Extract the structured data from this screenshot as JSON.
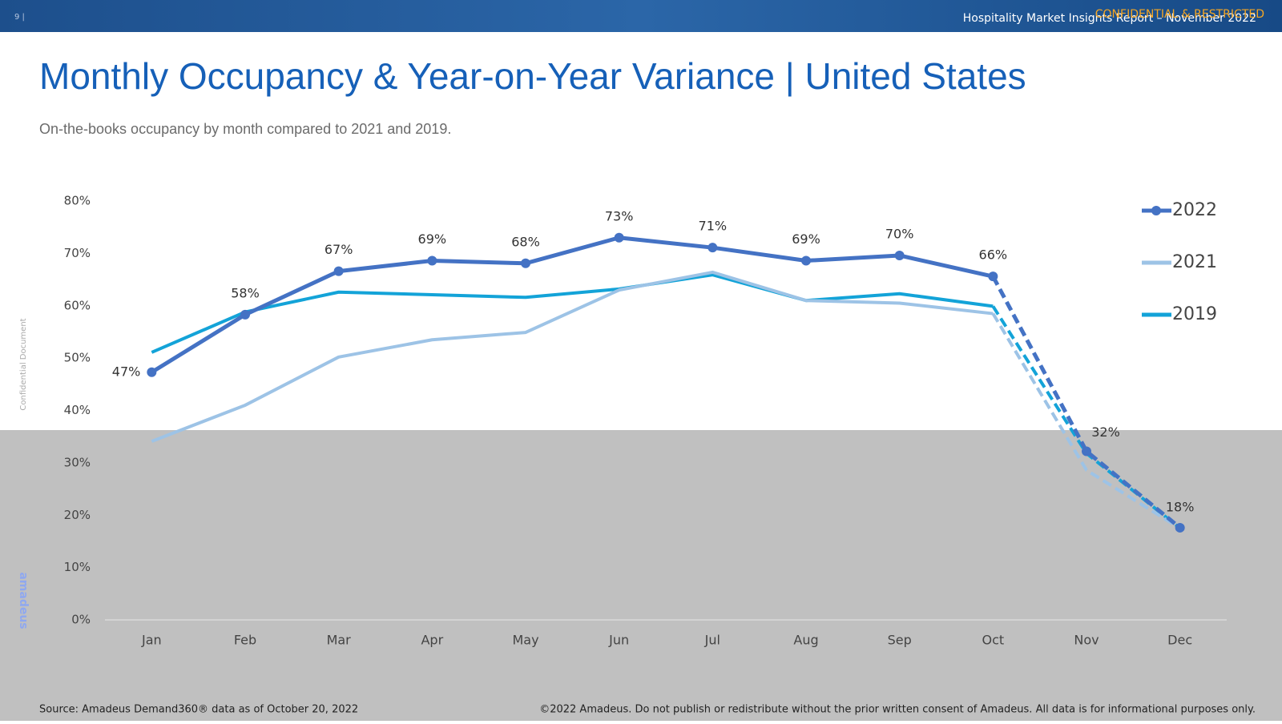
{
  "header": {
    "page": "9 |",
    "report": "Hospitality Market Insights Report – November 2022",
    "classification": "CONFIDENTIAL & RESTRICTED"
  },
  "side_note": "Confidential Document",
  "logo": "amadeus",
  "footer": {
    "source": "Source: Amadeus Demand360® data as of October 20, 2022",
    "copyright": "©2022 Amadeus. Do not publish or redistribute without the prior written consent of Amadeus. All data is for informational purposes only."
  },
  "chart_data": {
    "type": "line",
    "title": "Monthly Occupancy & Year-on-Year Variance | United States",
    "subtitle": "On-the-books occupancy by month compared to 2021 and 2019.",
    "categories": [
      "Jan",
      "Feb",
      "Mar",
      "Apr",
      "May",
      "Jun",
      "Jul",
      "Aug",
      "Sep",
      "Oct",
      "Nov",
      "Dec"
    ],
    "dashed_from_index": 9,
    "series": [
      {
        "name": "2022",
        "color": "#4472c4",
        "markers": true,
        "values": [
          47.3,
          58.3,
          66.6,
          68.6,
          68.1,
          73.0,
          71.1,
          68.6,
          69.6,
          65.6,
          32.2,
          17.6
        ],
        "value_labels": [
          "47%",
          "58%",
          "67%",
          "69%",
          "68%",
          "73%",
          "71%",
          "69%",
          "70%",
          "66%",
          "32%",
          "18%"
        ]
      },
      {
        "name": "2021",
        "color": "#9dc3e6",
        "markers": false,
        "values": [
          34.1,
          41.0,
          50.2,
          53.5,
          54.9,
          63.0,
          66.4,
          61.0,
          60.5,
          58.5,
          28.6,
          17.5
        ]
      },
      {
        "name": "2019",
        "color": "#13a3d8",
        "markers": false,
        "values": [
          51.1,
          58.8,
          62.6,
          62.1,
          61.6,
          63.2,
          65.9,
          61.0,
          62.3,
          59.9,
          31.8,
          17.5
        ]
      }
    ],
    "ylim": [
      0,
      80
    ],
    "yticks": [
      {
        "value": 0,
        "label": "0%"
      },
      {
        "value": 10,
        "label": "10%"
      },
      {
        "value": 20,
        "label": "20%"
      },
      {
        "value": 30,
        "label": "30%"
      },
      {
        "value": 40,
        "label": "40%"
      },
      {
        "value": 50,
        "label": "50%"
      },
      {
        "value": 60,
        "label": "60%"
      },
      {
        "value": 70,
        "label": "70%"
      },
      {
        "value": 80,
        "label": "80%"
      }
    ],
    "grid": false,
    "legend": "right"
  }
}
